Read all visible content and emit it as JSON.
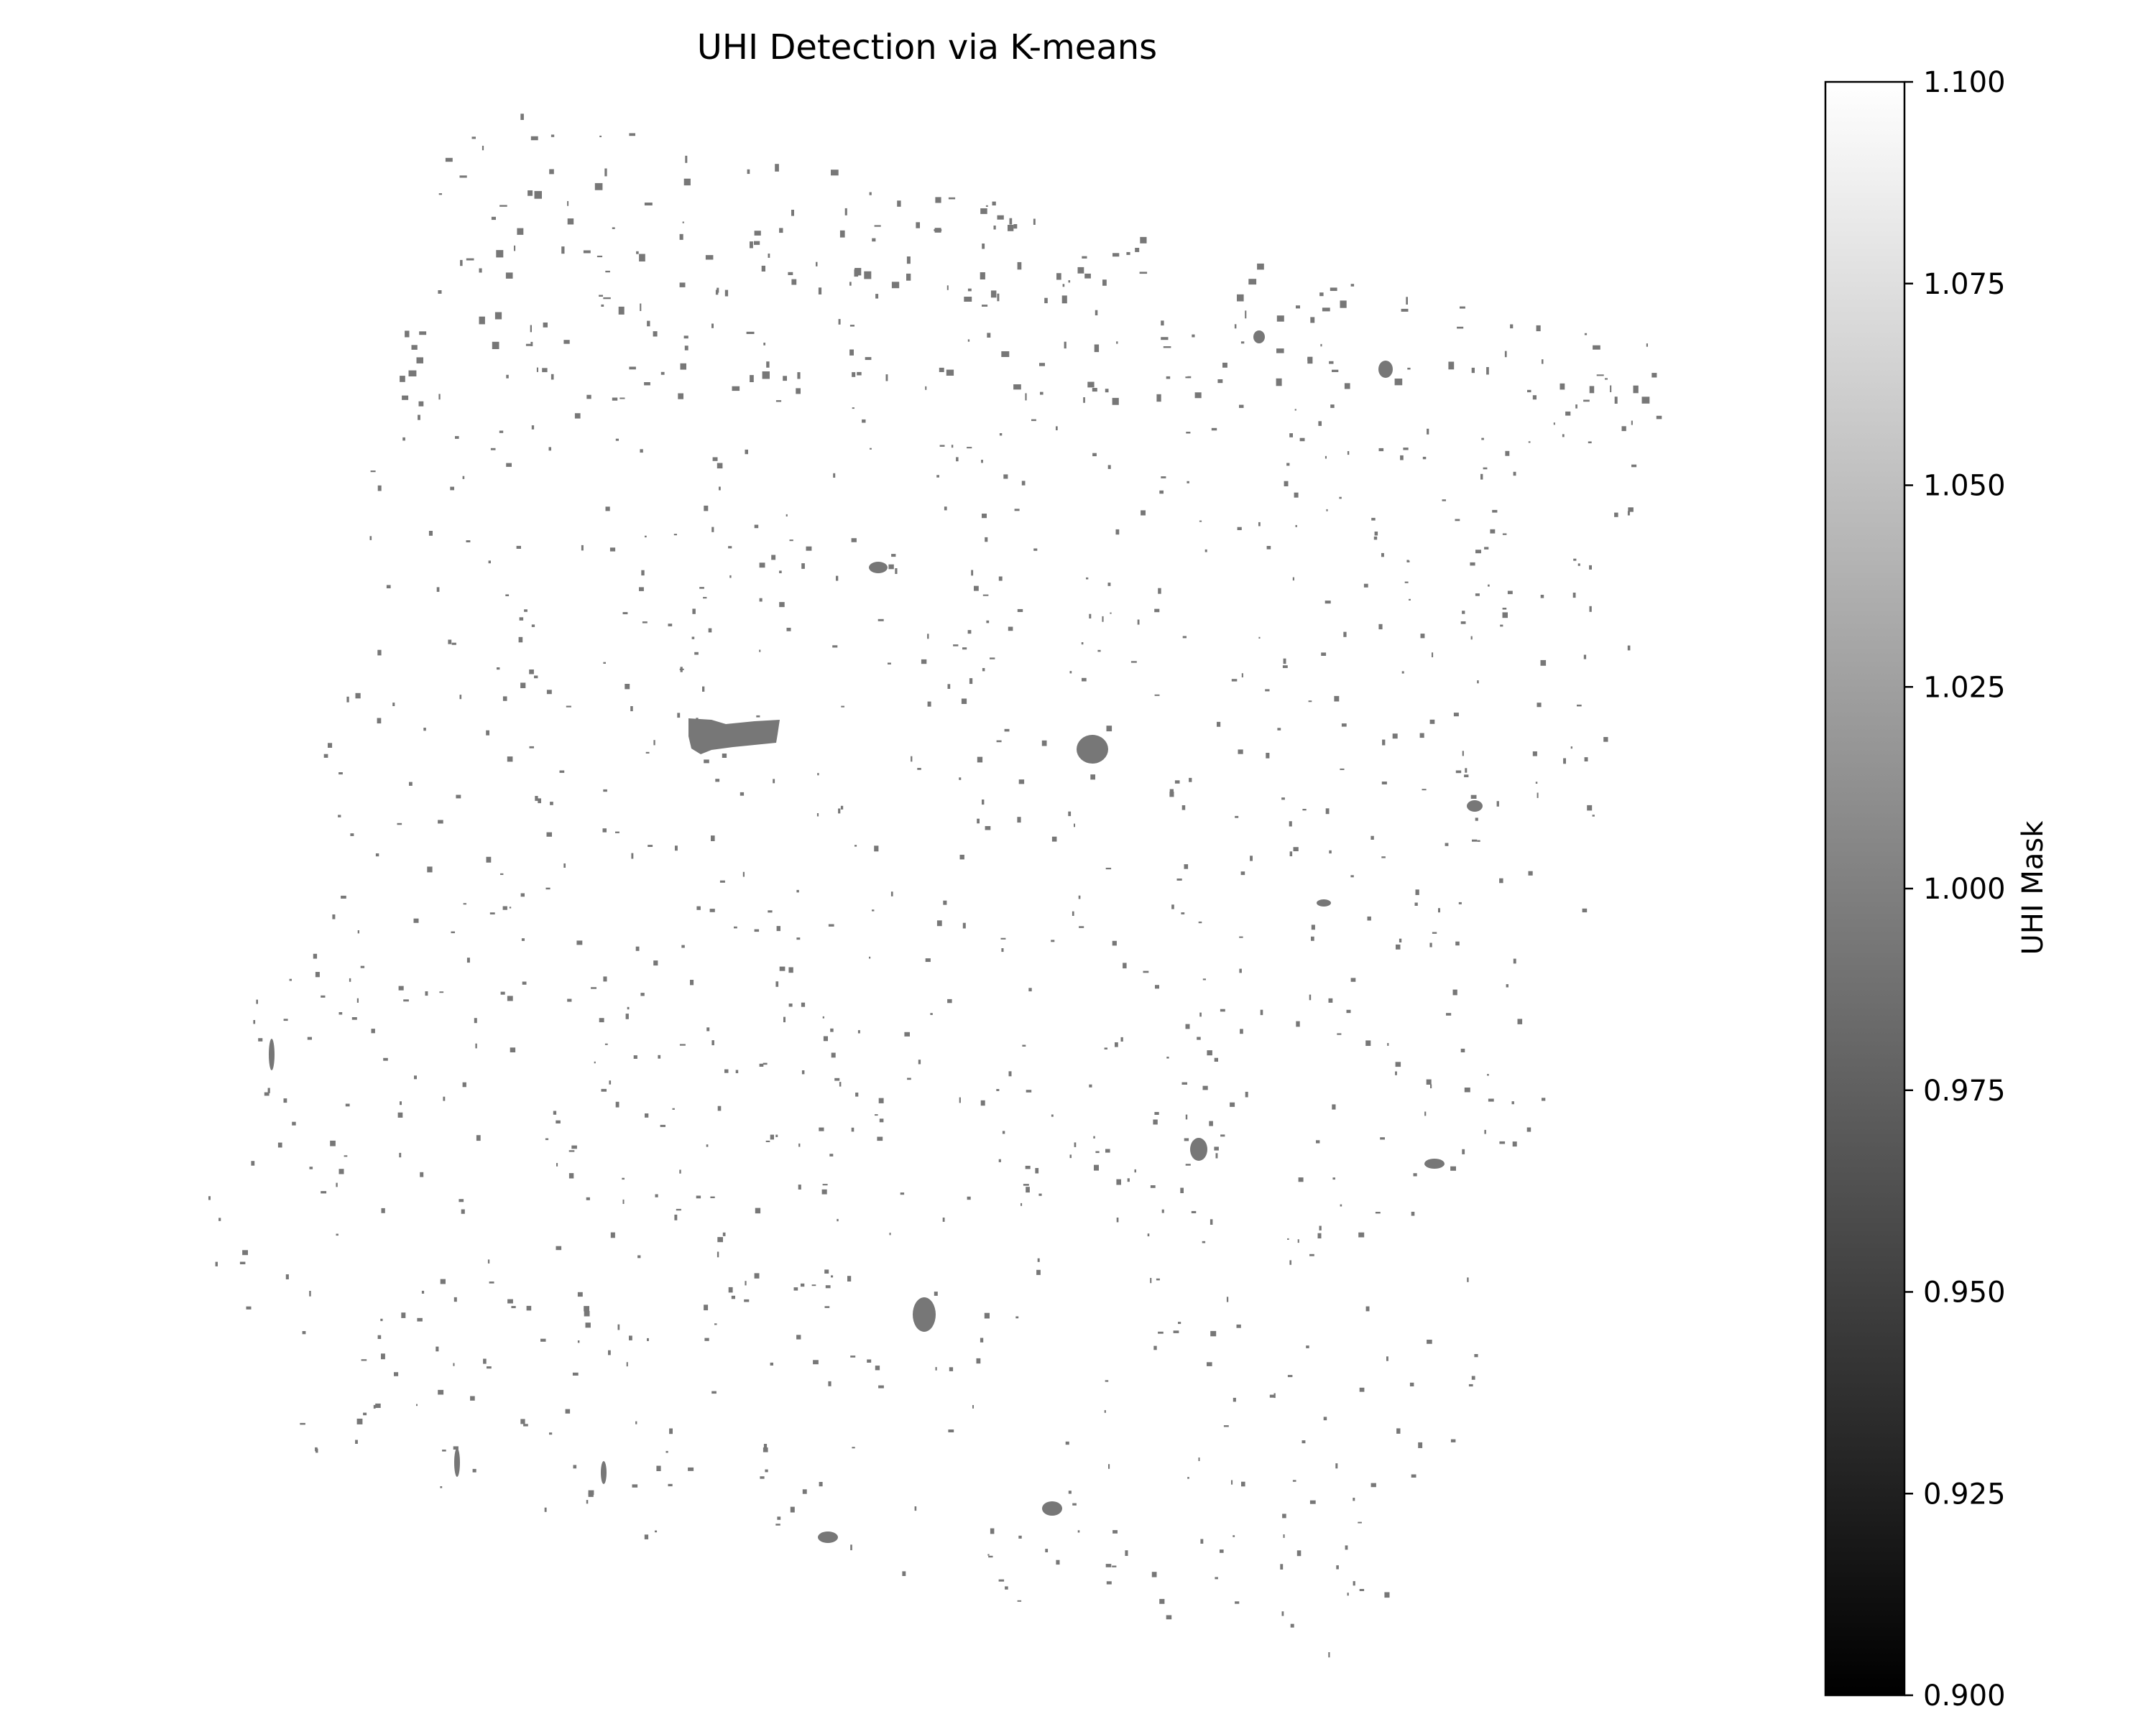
{
  "chart_data": {
    "type": "heatmap",
    "title": "UHI Detection via K-means",
    "colormap": "gray",
    "colormap_colors": [
      "#000000",
      "#ffffff"
    ],
    "mask_color": "#777777",
    "colorbar": {
      "label": "UHI Mask",
      "vmin": 0.9,
      "vmax": 1.1,
      "ticks": [
        {
          "value": 1.1,
          "label": "1.100"
        },
        {
          "value": 1.075,
          "label": "1.075"
        },
        {
          "value": 1.05,
          "label": "1.050"
        },
        {
          "value": 1.025,
          "label": "1.025"
        },
        {
          "value": 1.0,
          "label": "1.000"
        },
        {
          "value": 0.975,
          "label": "0.975"
        },
        {
          "value": 0.95,
          "label": "0.950"
        },
        {
          "value": 0.925,
          "label": "0.925"
        },
        {
          "value": 0.9,
          "label": "0.900"
        }
      ]
    },
    "mask_value": 1.0,
    "axes_visible": false,
    "grid": false
  }
}
